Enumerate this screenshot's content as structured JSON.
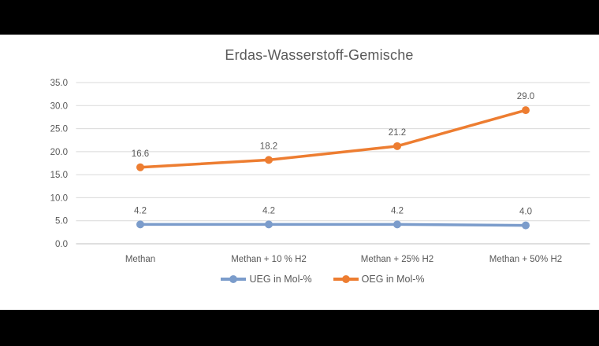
{
  "window": {
    "background": "#000000",
    "slide_background": "#ffffff"
  },
  "chart_data": {
    "type": "line",
    "title": "Erdas-Wasserstoff-Gemische",
    "categories": [
      "Methan",
      "Methan + 10 % H2",
      "Methan + 25% H2",
      "Methan + 50% H2"
    ],
    "series": [
      {
        "name": "UEG in Mol-%",
        "color": "#7B9CCB",
        "values": [
          4.2,
          4.2,
          4.2,
          4.0
        ],
        "labels": [
          "4.2",
          "4.2",
          "4.2",
          "4.0"
        ]
      },
      {
        "name": "OEG in Mol-%",
        "color": "#ED7D31",
        "values": [
          16.6,
          18.2,
          21.2,
          29.0
        ],
        "labels": [
          "16.6",
          "18.2",
          "21.2",
          "29.0"
        ]
      }
    ],
    "y_axis": {
      "min": 0,
      "max": 35,
      "step": 5,
      "tick_labels": [
        "0.0",
        "5.0",
        "10.0",
        "15.0",
        "20.0",
        "25.0",
        "30.0",
        "35.0"
      ]
    },
    "legend_position": "bottom",
    "grid": true,
    "colors": {
      "text": "#595959",
      "gridline": "#D9D9D9",
      "axis_line": "#BFBFBF"
    }
  }
}
